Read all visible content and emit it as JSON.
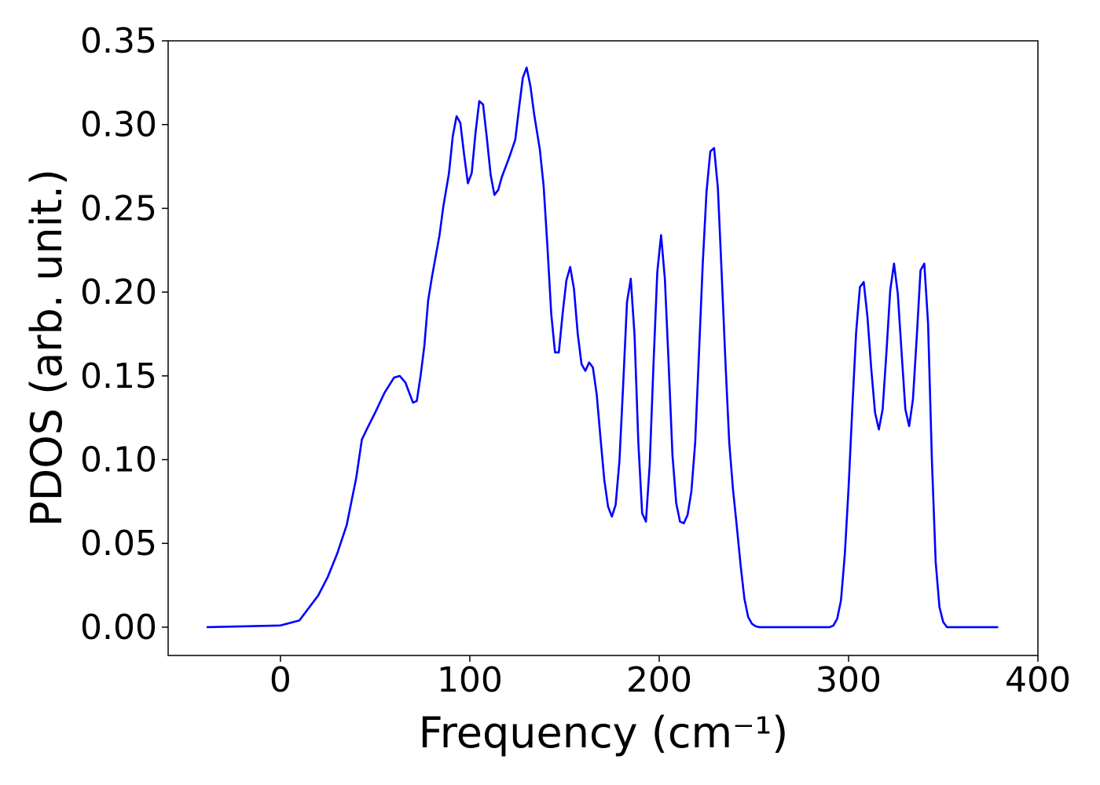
{
  "chart_data": {
    "type": "line",
    "xlabel": "Frequency (cm⁻¹)",
    "ylabel": "PDOS (arb. unit.)",
    "xlim": [
      -59.3,
      400
    ],
    "ylim": [
      -0.0169,
      0.35
    ],
    "xticks": [
      0,
      100,
      200,
      300,
      400
    ],
    "yticks": [
      {
        "value": 0,
        "label": "0.00"
      },
      {
        "value": 0.05,
        "label": "0.05"
      },
      {
        "value": 0.1,
        "label": "0.10"
      },
      {
        "value": 0.15,
        "label": "0.15"
      },
      {
        "value": 0.2,
        "label": "0.20"
      },
      {
        "value": 0.25,
        "label": "0.25"
      },
      {
        "value": 0.3,
        "label": "0.30"
      },
      {
        "value": 0.35,
        "label": "0.35"
      }
    ],
    "grid": false,
    "series": [
      {
        "color": "#0000ff",
        "x": [
          -39,
          0,
          10,
          20,
          25,
          30,
          35,
          40,
          43,
          46,
          50,
          55,
          60,
          63,
          66,
          70,
          72,
          74,
          76,
          78,
          80,
          84,
          86,
          89,
          91,
          93,
          95,
          97,
          99,
          101,
          103,
          105,
          107,
          109,
          111,
          113,
          115,
          117,
          119,
          121,
          124,
          126,
          128,
          130,
          132,
          134,
          137,
          139,
          141,
          143,
          145,
          147,
          149,
          151,
          153,
          155,
          157,
          159,
          161,
          163,
          165,
          167,
          169,
          171,
          173,
          175,
          177,
          179,
          181,
          183,
          185,
          187,
          189,
          191,
          193,
          195,
          197,
          199,
          201,
          203,
          205,
          207,
          209,
          211,
          213,
          215,
          217,
          219,
          221,
          223,
          225,
          227,
          229,
          231,
          233,
          235,
          237,
          239,
          241,
          243,
          245,
          247,
          249,
          251,
          253,
          290,
          292,
          294,
          296,
          298,
          300,
          302,
          304,
          306,
          308,
          310,
          312,
          314,
          316,
          318,
          320,
          322,
          324,
          326,
          328,
          330,
          332,
          334,
          336,
          338,
          340,
          342,
          344,
          346,
          348,
          350,
          352,
          379
        ],
        "values": [
          0,
          0.001,
          0.004,
          0.019,
          0.03,
          0.044,
          0.061,
          0.089,
          0.112,
          0.119,
          0.128,
          0.14,
          0.149,
          0.15,
          0.146,
          0.134,
          0.135,
          0.15,
          0.168,
          0.195,
          0.209,
          0.234,
          0.251,
          0.271,
          0.293,
          0.305,
          0.301,
          0.282,
          0.265,
          0.271,
          0.295,
          0.314,
          0.312,
          0.292,
          0.27,
          0.258,
          0.261,
          0.269,
          0.275,
          0.281,
          0.291,
          0.31,
          0.328,
          0.334,
          0.323,
          0.306,
          0.285,
          0.263,
          0.227,
          0.187,
          0.164,
          0.164,
          0.187,
          0.207,
          0.215,
          0.202,
          0.175,
          0.157,
          0.153,
          0.158,
          0.155,
          0.139,
          0.113,
          0.088,
          0.072,
          0.066,
          0.073,
          0.099,
          0.145,
          0.194,
          0.208,
          0.174,
          0.11,
          0.068,
          0.063,
          0.097,
          0.157,
          0.212,
          0.234,
          0.208,
          0.157,
          0.103,
          0.074,
          0.063,
          0.062,
          0.067,
          0.081,
          0.11,
          0.163,
          0.217,
          0.26,
          0.284,
          0.286,
          0.262,
          0.211,
          0.158,
          0.11,
          0.082,
          0.06,
          0.037,
          0.017,
          0.006,
          0.002,
          0.0005,
          0,
          0,
          0.001,
          0.005,
          0.016,
          0.043,
          0.083,
          0.131,
          0.176,
          0.203,
          0.206,
          0.185,
          0.154,
          0.128,
          0.118,
          0.13,
          0.164,
          0.201,
          0.217,
          0.199,
          0.164,
          0.13,
          0.12,
          0.136,
          0.173,
          0.213,
          0.217,
          0.181,
          0.1,
          0.039,
          0.012,
          0.003,
          0,
          0
        ]
      }
    ]
  }
}
